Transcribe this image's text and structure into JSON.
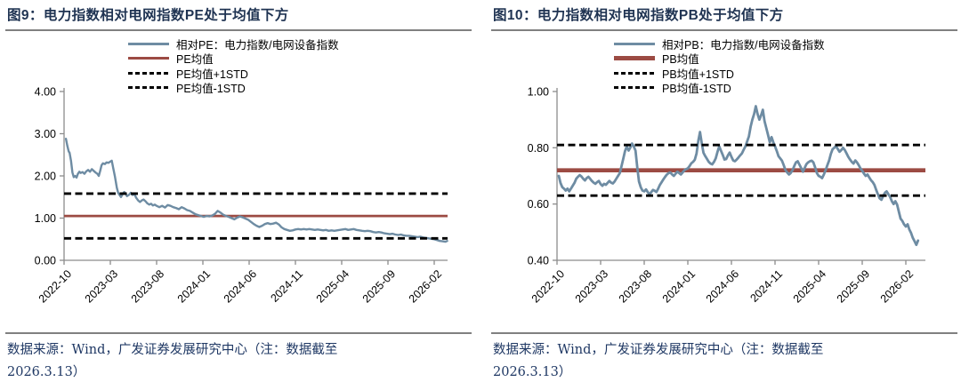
{
  "page": {
    "background_color": "#ffffff"
  },
  "colors": {
    "title_text": "#1f3352",
    "source_text": "#1f3864",
    "axis": "#8c8c8c",
    "divider": "#808080",
    "series_blue": "#6e8ca3",
    "mean_red": "#9c4b43",
    "std_black": "#000000"
  },
  "chart_data": [
    {
      "type": "line",
      "title": "图9：电力指数相对电网指数PE处于均值下方",
      "x_tick_labels": [
        "2022-10",
        "2023-03",
        "2023-08",
        "2024-01",
        "2024-06",
        "2024-11",
        "2025-04",
        "2025-09",
        "2026-02"
      ],
      "y_ticks": [
        "0.00",
        "1.00",
        "2.00",
        "3.00",
        "4.00"
      ],
      "ylim": [
        0,
        4
      ],
      "grid": false,
      "legend_position": "top",
      "mean": 1.05,
      "mean_plus_1std": 1.58,
      "mean_minus_1std": 0.52,
      "legend": [
        {
          "label": "相对PE：电力指数/电网设备指数",
          "style": "solid",
          "color": "#6e8ca3",
          "weight": 3
        },
        {
          "label": "PE均值",
          "style": "solid",
          "color": "#9c4b43",
          "weight": 3
        },
        {
          "label": "PE均值+1STD",
          "style": "dashed",
          "color": "#000000",
          "weight": 3
        },
        {
          "label": "PE均值-1STD",
          "style": "dashed",
          "color": "#000000",
          "weight": 3
        }
      ],
      "series": {
        "name": "相对PE：电力指数/电网设备指数",
        "x_unit": "months since 2022-10",
        "x": [
          0.2,
          0.35,
          0.5,
          0.6,
          0.75,
          0.9,
          1.05,
          1.2,
          1.35,
          1.5,
          1.65,
          1.8,
          2.0,
          2.2,
          2.4,
          2.6,
          2.8,
          3.0,
          3.2,
          3.4,
          3.6,
          3.75,
          3.9,
          4.05,
          4.2,
          4.4,
          4.6,
          4.8,
          5.0,
          5.15,
          5.3,
          5.5,
          5.7,
          5.85,
          6.0,
          6.15,
          6.3,
          6.5,
          6.65,
          6.8,
          7.0,
          7.2,
          7.4,
          7.6,
          7.8,
          8.0,
          8.2,
          8.4,
          8.6,
          8.8,
          9.0,
          9.2,
          9.4,
          9.6,
          9.8,
          10.0,
          10.3,
          10.6,
          10.9,
          11.2,
          11.5,
          11.8,
          12.1,
          12.4,
          12.7,
          13.0,
          13.3,
          13.6,
          13.9,
          14.2,
          14.5,
          14.8,
          15.1,
          15.4,
          15.7,
          16.0,
          16.3,
          16.6,
          16.9,
          17.2,
          17.5,
          17.8,
          18.1,
          18.4,
          18.7,
          19.0,
          19.3,
          19.6,
          19.9,
          20.2,
          20.5,
          20.8,
          21.1,
          21.4,
          21.7,
          22.0,
          22.3,
          22.6,
          22.9,
          23.2,
          23.5,
          23.8,
          24.1,
          24.4,
          24.7,
          25.0,
          25.3,
          25.6,
          25.9,
          26.2,
          26.5,
          26.8,
          27.1,
          27.4,
          27.7,
          28.0,
          28.3,
          28.6,
          28.9,
          29.2,
          29.5,
          29.8,
          30.1,
          30.4,
          30.7,
          31.0,
          31.3,
          31.6,
          31.9,
          32.2,
          32.5,
          32.8,
          33.1,
          33.4,
          33.7,
          34.0,
          34.3,
          34.6,
          34.9,
          35.2,
          35.5,
          35.8,
          36.1,
          36.4,
          36.7,
          37.0,
          37.3,
          37.6,
          37.9,
          38.2,
          38.5,
          38.8,
          39.1,
          39.4,
          39.7,
          40.0,
          40.3,
          40.6,
          40.9,
          41.2,
          41.4
        ],
        "y": [
          2.88,
          2.72,
          2.58,
          2.55,
          2.36,
          2.08,
          1.97,
          2.0,
          1.96,
          2.05,
          2.1,
          2.07,
          2.09,
          2.05,
          2.11,
          2.14,
          2.1,
          2.16,
          2.12,
          2.08,
          2.05,
          2.0,
          2.12,
          2.25,
          2.3,
          2.28,
          2.32,
          2.31,
          2.34,
          2.36,
          2.2,
          1.98,
          1.72,
          1.6,
          1.55,
          1.5,
          1.56,
          1.62,
          1.58,
          1.52,
          1.55,
          1.6,
          1.55,
          1.57,
          1.48,
          1.42,
          1.38,
          1.42,
          1.44,
          1.4,
          1.35,
          1.32,
          1.34,
          1.3,
          1.32,
          1.29,
          1.26,
          1.29,
          1.25,
          1.31,
          1.29,
          1.26,
          1.24,
          1.21,
          1.26,
          1.23,
          1.19,
          1.17,
          1.13,
          1.09,
          1.07,
          1.05,
          1.03,
          1.05,
          1.04,
          1.06,
          1.1,
          1.17,
          1.13,
          1.08,
          1.05,
          1.03,
          1.0,
          0.97,
          1.01,
          1.04,
          1.02,
          0.99,
          0.96,
          0.91,
          0.86,
          0.82,
          0.79,
          0.82,
          0.86,
          0.88,
          0.86,
          0.87,
          0.89,
          0.85,
          0.78,
          0.74,
          0.72,
          0.7,
          0.71,
          0.73,
          0.74,
          0.73,
          0.74,
          0.73,
          0.74,
          0.73,
          0.72,
          0.73,
          0.72,
          0.71,
          0.72,
          0.7,
          0.71,
          0.7,
          0.71,
          0.72,
          0.73,
          0.74,
          0.72,
          0.73,
          0.74,
          0.72,
          0.71,
          0.7,
          0.69,
          0.7,
          0.69,
          0.67,
          0.66,
          0.67,
          0.66,
          0.64,
          0.63,
          0.62,
          0.63,
          0.61,
          0.6,
          0.61,
          0.59,
          0.58,
          0.58,
          0.57,
          0.56,
          0.55,
          0.56,
          0.54,
          0.53,
          0.52,
          0.51,
          0.5,
          0.48,
          0.46,
          0.45,
          0.44,
          0.46
        ]
      },
      "source_line1": "数据来源：Wind，广发证券发展研究中心（注：数据截至",
      "source_line2": "2026.3.13）"
    },
    {
      "type": "line",
      "title": "图10：电力指数相对电网指数PB处于均值下方",
      "x_tick_labels": [
        "2022-10",
        "2023-03",
        "2023-08",
        "2024-01",
        "2024-06",
        "2024-11",
        "2025-04",
        "2025-09",
        "2026-02"
      ],
      "y_ticks": [
        "0.40",
        "0.60",
        "0.80",
        "1.00"
      ],
      "ylim": [
        0.4,
        1.0
      ],
      "grid": false,
      "legend_position": "top",
      "mean": 0.72,
      "mean_plus_1std": 0.81,
      "mean_minus_1std": 0.63,
      "legend": [
        {
          "label": "相对PB：电力指数/电网设备指数",
          "style": "solid",
          "color": "#6e8ca3",
          "weight": 3
        },
        {
          "label": "PB均值",
          "style": "solid",
          "color": "#9c4b43",
          "weight": 5
        },
        {
          "label": "PB均值+1STD",
          "style": "dashed",
          "color": "#000000",
          "weight": 3
        },
        {
          "label": "PB均值-1STD",
          "style": "dashed",
          "color": "#000000",
          "weight": 3
        }
      ],
      "series": {
        "name": "相对PB：电力指数/电网设备指数",
        "x_unit": "months since 2022-10",
        "x_start": 0.2,
        "x_step": 0.2,
        "y": [
          0.7,
          0.675,
          0.66,
          0.655,
          0.648,
          0.655,
          0.645,
          0.655,
          0.665,
          0.675,
          0.69,
          0.697,
          0.703,
          0.698,
          0.69,
          0.684,
          0.692,
          0.697,
          0.69,
          0.682,
          0.676,
          0.672,
          0.678,
          0.682,
          0.671,
          0.665,
          0.672,
          0.668,
          0.675,
          0.682,
          0.676,
          0.673,
          0.68,
          0.69,
          0.7,
          0.71,
          0.735,
          0.762,
          0.788,
          0.805,
          0.79,
          0.8,
          0.815,
          0.805,
          0.79,
          0.73,
          0.68,
          0.66,
          0.648,
          0.645,
          0.652,
          0.643,
          0.635,
          0.642,
          0.65,
          0.647,
          0.643,
          0.655,
          0.668,
          0.678,
          0.688,
          0.697,
          0.705,
          0.71,
          0.712,
          0.705,
          0.7,
          0.708,
          0.715,
          0.71,
          0.705,
          0.712,
          0.72,
          0.724,
          0.727,
          0.735,
          0.745,
          0.75,
          0.757,
          0.78,
          0.825,
          0.856,
          0.815,
          0.782,
          0.77,
          0.76,
          0.75,
          0.744,
          0.741,
          0.75,
          0.763,
          0.785,
          0.805,
          0.79,
          0.775,
          0.758,
          0.76,
          0.773,
          0.783,
          0.768,
          0.755,
          0.752,
          0.758,
          0.765,
          0.773,
          0.78,
          0.793,
          0.805,
          0.822,
          0.84,
          0.875,
          0.9,
          0.92,
          0.948,
          0.92,
          0.9,
          0.915,
          0.935,
          0.895,
          0.87,
          0.845,
          0.82,
          0.838,
          0.82,
          0.805,
          0.788,
          0.77,
          0.762,
          0.754,
          0.738,
          0.72,
          0.712,
          0.705,
          0.71,
          0.72,
          0.735,
          0.748,
          0.752,
          0.74,
          0.728,
          0.715,
          0.728,
          0.742,
          0.748,
          0.752,
          0.754,
          0.748,
          0.73,
          0.71,
          0.7,
          0.697,
          0.692,
          0.705,
          0.72,
          0.738,
          0.755,
          0.778,
          0.795,
          0.8,
          0.806,
          0.795,
          0.786,
          0.792,
          0.8,
          0.792,
          0.78,
          0.768,
          0.758,
          0.75,
          0.744,
          0.755,
          0.748,
          0.738,
          0.727,
          0.718,
          0.708,
          0.7,
          0.705,
          0.695,
          0.685,
          0.678,
          0.668,
          0.65,
          0.635,
          0.62,
          0.615,
          0.628,
          0.64,
          0.645,
          0.635,
          0.625,
          0.61,
          0.6,
          0.61,
          0.598,
          0.572,
          0.548,
          0.54,
          0.528,
          0.52,
          0.528,
          0.51,
          0.497,
          0.48,
          0.468,
          0.455,
          0.47
        ]
      },
      "source_line1": "数据来源：Wind，广发证券发展研究中心（注：数据截至",
      "source_line2": "2026.3.13）"
    }
  ]
}
